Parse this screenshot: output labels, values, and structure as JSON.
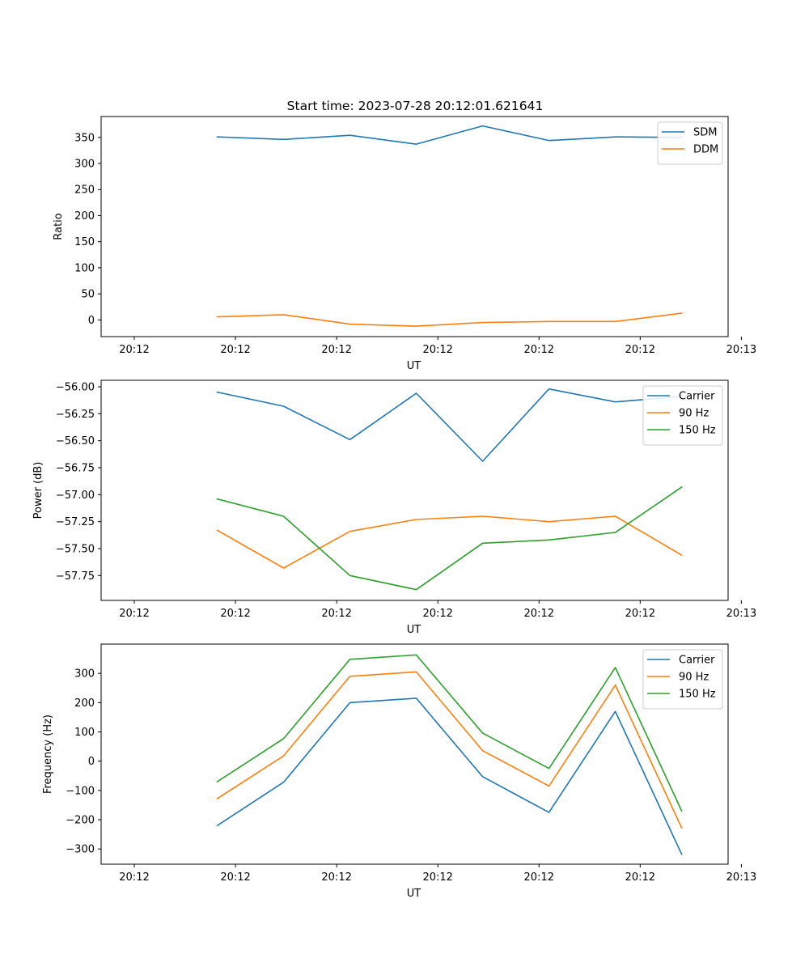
{
  "figure_title": "Start time: 2023-07-28 20:12:01.621641",
  "colors": {
    "blue": "#1f77b4",
    "orange": "#ff7f0e",
    "green": "#2ca02c"
  },
  "chart_data": [
    {
      "type": "line",
      "title": "Start time: 2023-07-28 20:12:01.621641",
      "xlabel": "UT",
      "ylabel": "Ratio",
      "x": [
        1,
        2,
        3,
        4,
        5,
        6,
        7,
        8
      ],
      "xlim": [
        -0.75,
        8.7
      ],
      "xticks": [
        -0.25,
        1.275,
        2.8,
        4.325,
        5.85,
        7.375,
        8.9
      ],
      "xtick_labels": [
        "20:12",
        "20:12",
        "20:12",
        "20:12",
        "20:12",
        "20:12",
        "20:13"
      ],
      "ylim": [
        -32,
        390
      ],
      "yticks": [
        0,
        50,
        100,
        150,
        200,
        250,
        300,
        350
      ],
      "ytick_labels": [
        "0",
        "50",
        "100",
        "150",
        "200",
        "250",
        "300",
        "350"
      ],
      "legend": "upper right",
      "series": [
        {
          "name": "SDM",
          "color": "#1f77b4",
          "values": [
            351,
            346,
            354,
            337,
            372,
            344,
            351,
            350
          ]
        },
        {
          "name": "DDM",
          "color": "#ff7f0e",
          "values": [
            6,
            10,
            -8,
            -12,
            -5,
            -3,
            -3,
            13
          ]
        }
      ]
    },
    {
      "type": "line",
      "title": "",
      "xlabel": "UT",
      "ylabel": "Power (dB)",
      "x": [
        1,
        2,
        3,
        4,
        5,
        6,
        7,
        8
      ],
      "xlim": [
        -0.75,
        8.7
      ],
      "xticks": [
        -0.25,
        1.275,
        2.8,
        4.325,
        5.85,
        7.375,
        8.9
      ],
      "xtick_labels": [
        "20:12",
        "20:12",
        "20:12",
        "20:12",
        "20:12",
        "20:12",
        "20:13"
      ],
      "ylim": [
        -57.98,
        -55.94
      ],
      "yticks": [
        -57.75,
        -57.5,
        -57.25,
        -57.0,
        -56.75,
        -56.5,
        -56.25,
        -56.0
      ],
      "ytick_labels": [
        "−57.75",
        "−57.50",
        "−57.25",
        "−57.00",
        "−56.75",
        "−56.50",
        "−56.25",
        "−56.00"
      ],
      "legend": "upper right",
      "series": [
        {
          "name": "Carrier",
          "color": "#1f77b4",
          "values": [
            -56.05,
            -56.18,
            -56.49,
            -56.06,
            -56.69,
            -56.02,
            -56.14,
            -56.09
          ]
        },
        {
          "name": "90 Hz",
          "color": "#ff7f0e",
          "values": [
            -57.33,
            -57.68,
            -57.34,
            -57.23,
            -57.2,
            -57.25,
            -57.2,
            -57.56
          ]
        },
        {
          "name": "150 Hz",
          "color": "#2ca02c",
          "values": [
            -57.04,
            -57.2,
            -57.75,
            -57.88,
            -57.45,
            -57.42,
            -57.35,
            -56.93
          ]
        }
      ]
    },
    {
      "type": "line",
      "title": "",
      "xlabel": "UT",
      "ylabel": "Frequency (Hz)",
      "x": [
        1,
        2,
        3,
        4,
        5,
        6,
        7,
        8
      ],
      "xlim": [
        -0.75,
        8.7
      ],
      "xticks": [
        -0.25,
        1.275,
        2.8,
        4.325,
        5.85,
        7.375,
        8.9
      ],
      "xtick_labels": [
        "20:12",
        "20:12",
        "20:12",
        "20:12",
        "20:12",
        "20:12",
        "20:13"
      ],
      "ylim": [
        -352,
        400
      ],
      "yticks": [
        -300,
        -200,
        -100,
        0,
        100,
        200,
        300
      ],
      "ytick_labels": [
        "−300",
        "−200",
        "−100",
        "0",
        "100",
        "200",
        "300"
      ],
      "legend": "upper right",
      "series": [
        {
          "name": "Carrier",
          "color": "#1f77b4",
          "values": [
            -220,
            -72,
            200,
            215,
            -53,
            -175,
            170,
            -318
          ]
        },
        {
          "name": "90 Hz",
          "color": "#ff7f0e",
          "values": [
            -128,
            18,
            290,
            305,
            36,
            -85,
            260,
            -228
          ]
        },
        {
          "name": "150 Hz",
          "color": "#2ca02c",
          "values": [
            -70,
            77,
            348,
            363,
            96,
            -25,
            320,
            -170
          ]
        }
      ]
    }
  ]
}
